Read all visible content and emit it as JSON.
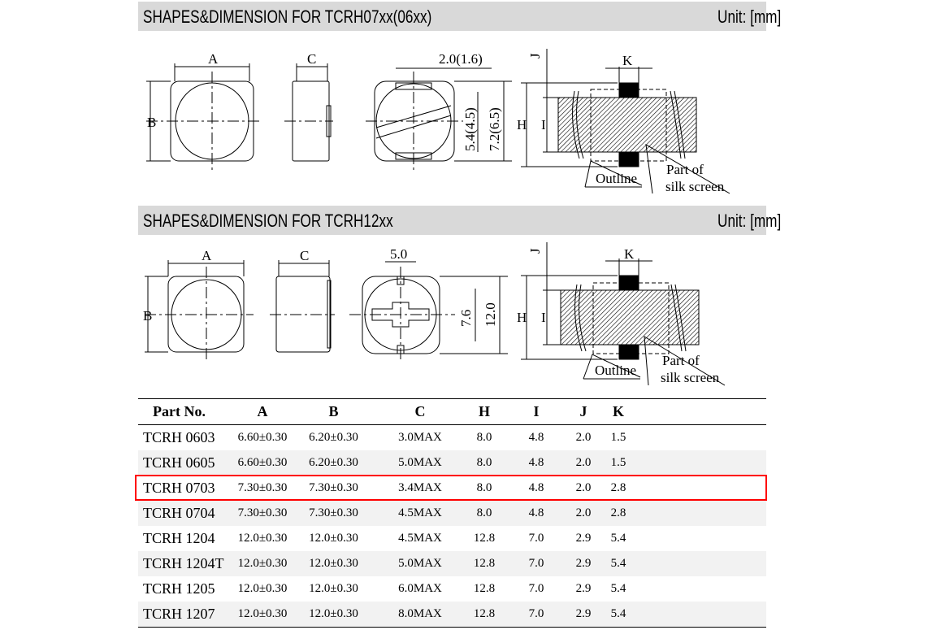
{
  "section1": {
    "title": "SHAPES&DIMENSION FOR TCRH07xx(06xx)",
    "unit": "Unit: [mm]",
    "labels": {
      "a": "A",
      "b": "B",
      "c": "C",
      "slot": "2.0(1.6)",
      "inner": "5.4(4.5)",
      "outer": "7.2(6.5)",
      "h": "H",
      "i": "I",
      "j": "J",
      "k": "K",
      "outline": "Outline",
      "silk1": "Part of",
      "silk2": "silk screen"
    }
  },
  "section2": {
    "title": "SHAPES&DIMENSION FOR TCRH12xx",
    "unit": "Unit: [mm]",
    "labels": {
      "a": "A",
      "b": "B",
      "c": "C",
      "slot": "5.0",
      "inner": "7.6",
      "outer": "12.0",
      "h": "H",
      "i": "I",
      "j": "J",
      "k": "K",
      "outline": "Outline",
      "silk1": "Part of",
      "silk2": "silk screen"
    }
  },
  "table": {
    "headers": [
      "Part No.",
      "A",
      "B",
      "C",
      "H",
      "I",
      "J",
      "K"
    ],
    "rows": [
      [
        "TCRH 0603",
        "6.60±0.30",
        "6.20±0.30",
        "3.0MAX",
        "8.0",
        "4.8",
        "2.0",
        "1.5"
      ],
      [
        "TCRH 0605",
        "6.60±0.30",
        "6.20±0.30",
        "5.0MAX",
        "8.0",
        "4.8",
        "2.0",
        "1.5"
      ],
      [
        "TCRH 0703",
        "7.30±0.30",
        "7.30±0.30",
        "3.4MAX",
        "8.0",
        "4.8",
        "2.0",
        "2.8"
      ],
      [
        "TCRH 0704",
        "7.30±0.30",
        "7.30±0.30",
        "4.5MAX",
        "8.0",
        "4.8",
        "2.0",
        "2.8"
      ],
      [
        "TCRH 1204",
        "12.0±0.30",
        "12.0±0.30",
        "4.5MAX",
        "12.8",
        "7.0",
        "2.9",
        "5.4"
      ],
      [
        "TCRH 1204T",
        "12.0±0.30",
        "12.0±0.30",
        "5.0MAX",
        "12.8",
        "7.0",
        "2.9",
        "5.4"
      ],
      [
        "TCRH 1205",
        "12.0±0.30",
        "12.0±0.30",
        "6.0MAX",
        "12.8",
        "7.0",
        "2.9",
        "5.4"
      ],
      [
        "TCRH 1207",
        "12.0±0.30",
        "12.0±0.30",
        "8.0MAX",
        "12.8",
        "7.0",
        "2.9",
        "5.4"
      ]
    ],
    "highlighted_row": "TCRH 0703",
    "highlight_color": "#ff0000"
  }
}
